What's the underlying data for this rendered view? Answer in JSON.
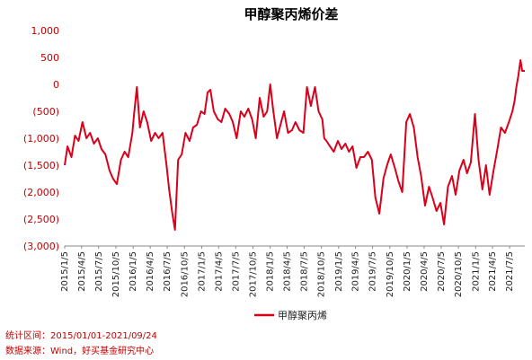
{
  "chart_data": {
    "type": "line",
    "title": "甲醇聚丙烯价差",
    "xlabel": "",
    "ylabel": "",
    "ylim": [
      -3000,
      1000
    ],
    "y_ticks": [
      1000,
      500,
      0,
      -500,
      -1000,
      -1500,
      -2000,
      -2500,
      -3000
    ],
    "y_tick_labels": [
      "1,000",
      "500",
      "0",
      "(500)",
      "(1,000)",
      "(1,500)",
      "(2,000)",
      "(2,500)",
      "(3,000)"
    ],
    "x_range": [
      "2015-01-05",
      "2021-09-24"
    ],
    "x_tick_labels": [
      "2015/1/5",
      "2015/4/5",
      "2015/7/5",
      "2015/10/5",
      "2016/1/5",
      "2016/4/5",
      "2016/7/5",
      "2016/10/5",
      "2017/1/5",
      "2017/4/5",
      "2017/7/5",
      "2017/10/5",
      "2018/1/5",
      "2018/4/5",
      "2018/7/5",
      "2018/10/5",
      "2019/1/5",
      "2019/4/5",
      "2019/7/5",
      "2019/10/5",
      "2020/1/5",
      "2020/4/5",
      "2020/7/5",
      "2020/10/5",
      "2021/1/5",
      "2021/4/5",
      "2021/7/5"
    ],
    "grid": false,
    "legend_position": "bottom",
    "series": [
      {
        "name": "甲醇聚丙烯",
        "color": "#d9001b",
        "x": [
          "2015-01-05",
          "2015-01-20",
          "2015-02-10",
          "2015-03-01",
          "2015-03-20",
          "2015-04-10",
          "2015-05-01",
          "2015-05-20",
          "2015-06-10",
          "2015-07-01",
          "2015-07-20",
          "2015-08-10",
          "2015-09-01",
          "2015-09-20",
          "2015-10-10",
          "2015-11-01",
          "2015-11-20",
          "2015-12-10",
          "2016-01-01",
          "2016-01-10",
          "2016-01-25",
          "2016-02-10",
          "2016-03-01",
          "2016-03-20",
          "2016-04-10",
          "2016-05-01",
          "2016-05-20",
          "2016-06-10",
          "2016-07-01",
          "2016-07-15",
          "2016-08-01",
          "2016-08-15",
          "2016-09-01",
          "2016-09-20",
          "2016-10-10",
          "2016-11-01",
          "2016-11-20",
          "2016-12-10",
          "2017-01-01",
          "2017-01-20",
          "2017-02-05",
          "2017-02-20",
          "2017-03-10",
          "2017-04-01",
          "2017-04-20",
          "2017-05-10",
          "2017-06-01",
          "2017-06-20",
          "2017-07-10",
          "2017-08-01",
          "2017-08-20",
          "2017-09-10",
          "2017-10-01",
          "2017-10-20",
          "2017-11-10",
          "2017-12-01",
          "2017-12-20",
          "2018-01-05",
          "2018-01-20",
          "2018-02-10",
          "2018-03-01",
          "2018-03-20",
          "2018-04-10",
          "2018-05-01",
          "2018-05-20",
          "2018-06-10",
          "2018-07-01",
          "2018-07-20",
          "2018-08-10",
          "2018-09-01",
          "2018-09-20",
          "2018-10-10",
          "2018-10-20",
          "2018-11-01",
          "2018-11-20",
          "2018-12-10",
          "2019-01-01",
          "2019-01-20",
          "2019-02-10",
          "2019-03-01",
          "2019-03-20",
          "2019-04-10",
          "2019-05-01",
          "2019-05-20",
          "2019-06-10",
          "2019-07-01",
          "2019-07-20",
          "2019-08-10",
          "2019-09-01",
          "2019-09-20",
          "2019-10-10",
          "2019-11-01",
          "2019-11-20",
          "2019-12-10",
          "2020-01-01",
          "2020-01-20",
          "2020-02-10",
          "2020-03-01",
          "2020-03-20",
          "2020-04-10",
          "2020-05-01",
          "2020-05-20",
          "2020-06-10",
          "2020-07-01",
          "2020-07-20",
          "2020-08-10",
          "2020-09-01",
          "2020-09-20",
          "2020-10-10",
          "2020-11-01",
          "2020-11-20",
          "2020-12-10",
          "2021-01-01",
          "2021-01-20",
          "2021-02-10",
          "2021-03-01",
          "2021-03-20",
          "2021-04-10",
          "2021-05-01",
          "2021-05-20",
          "2021-06-10",
          "2021-07-01",
          "2021-07-20",
          "2021-08-01",
          "2021-08-10",
          "2021-08-20",
          "2021-09-01",
          "2021-09-10",
          "2021-09-24"
        ],
        "y": [
          -1500,
          -1150,
          -1350,
          -950,
          -1050,
          -700,
          -1000,
          -900,
          -1100,
          -1000,
          -1200,
          -1300,
          -1600,
          -1750,
          -1850,
          -1400,
          -1250,
          -1350,
          -900,
          -550,
          -50,
          -800,
          -500,
          -700,
          -1050,
          -900,
          -1000,
          -900,
          -1500,
          -1950,
          -2400,
          -2700,
          -1400,
          -1300,
          -900,
          -1050,
          -800,
          -750,
          -500,
          -550,
          -150,
          -100,
          -500,
          -650,
          -700,
          -450,
          -550,
          -700,
          -1000,
          -500,
          -600,
          -450,
          -650,
          -1000,
          -250,
          -600,
          -500,
          0,
          -450,
          -1000,
          -750,
          -500,
          -900,
          -850,
          -700,
          -850,
          -900,
          -50,
          -400,
          -50,
          -500,
          -650,
          -1000,
          -1050,
          -1150,
          -1250,
          -1050,
          -1200,
          -1100,
          -1250,
          -1150,
          -1550,
          -1350,
          -1350,
          -1250,
          -1400,
          -2100,
          -2400,
          -1750,
          -1500,
          -1300,
          -1550,
          -1800,
          -2000,
          -700,
          -550,
          -800,
          -1350,
          -1700,
          -2250,
          -1900,
          -2100,
          -2350,
          -2200,
          -2600,
          -1900,
          -1700,
          -2050,
          -1600,
          -1400,
          -1650,
          -1450,
          -550,
          -1400,
          -1950,
          -1500,
          -2050,
          -1600,
          -1200,
          -800,
          -900,
          -700,
          -500,
          -300,
          -50,
          150,
          450,
          250,
          250
        ]
      }
    ]
  },
  "notes": {
    "range": "统计区间：2015/01/01-2021/09/24",
    "source": "数据来源：Wind，好买基金研究中心"
  }
}
